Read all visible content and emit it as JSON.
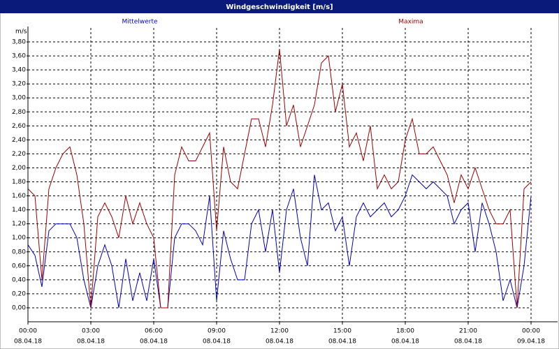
{
  "chart_data": {
    "type": "line",
    "title": "Windgeschwindigkeit [m/s]",
    "y_label": "m/s",
    "legend": "top",
    "grid": true,
    "x": [
      "08.04.18 00:00",
      "08.04.18 00:20",
      "08.04.18 00:40",
      "08.04.18 01:00",
      "08.04.18 01:20",
      "08.04.18 01:40",
      "08.04.18 02:00",
      "08.04.18 02:20",
      "08.04.18 02:40",
      "08.04.18 03:00",
      "08.04.18 03:20",
      "08.04.18 03:40",
      "08.04.18 04:00",
      "08.04.18 04:20",
      "08.04.18 04:40",
      "08.04.18 05:00",
      "08.04.18 05:20",
      "08.04.18 05:40",
      "08.04.18 06:00",
      "08.04.18 06:20",
      "08.04.18 06:40",
      "08.04.18 07:00",
      "08.04.18 07:20",
      "08.04.18 07:40",
      "08.04.18 08:00",
      "08.04.18 08:20",
      "08.04.18 08:40",
      "08.04.18 09:00",
      "08.04.18 09:20",
      "08.04.18 09:40",
      "08.04.18 10:00",
      "08.04.18 10:20",
      "08.04.18 10:40",
      "08.04.18 11:00",
      "08.04.18 11:20",
      "08.04.18 11:40",
      "08.04.18 12:00",
      "08.04.18 12:20",
      "08.04.18 12:40",
      "08.04.18 13:00",
      "08.04.18 13:20",
      "08.04.18 13:40",
      "08.04.18 14:00",
      "08.04.18 14:20",
      "08.04.18 14:40",
      "08.04.18 15:00",
      "08.04.18 15:20",
      "08.04.18 15:40",
      "08.04.18 16:00",
      "08.04.18 16:20",
      "08.04.18 16:40",
      "08.04.18 17:00",
      "08.04.18 17:20",
      "08.04.18 17:40",
      "08.04.18 18:00",
      "08.04.18 18:20",
      "08.04.18 18:40",
      "08.04.18 19:00",
      "08.04.18 19:20",
      "08.04.18 19:40",
      "08.04.18 20:00",
      "08.04.18 20:20",
      "08.04.18 20:40",
      "08.04.18 21:00",
      "08.04.18 21:20",
      "08.04.18 21:40",
      "08.04.18 22:00",
      "08.04.18 22:20",
      "08.04.18 22:40",
      "08.04.18 23:00",
      "08.04.18 23:20",
      "08.04.18 23:40",
      "09.04.18 00:00"
    ],
    "series": [
      {
        "name": "Mittelwerte",
        "color": "#0000c8",
        "values": [
          0.9,
          0.75,
          0.3,
          1.1,
          1.2,
          1.2,
          1.2,
          1.0,
          0.4,
          0.0,
          0.6,
          0.9,
          0.6,
          0.0,
          0.7,
          0.1,
          0.5,
          0.1,
          0.7,
          0.0,
          0.0,
          1.0,
          1.2,
          1.2,
          1.1,
          0.9,
          1.6,
          0.1,
          1.1,
          0.7,
          0.4,
          0.4,
          1.2,
          1.4,
          0.8,
          1.4,
          0.5,
          1.4,
          1.7,
          1.0,
          0.6,
          1.9,
          1.4,
          1.5,
          1.1,
          1.3,
          0.6,
          1.3,
          1.5,
          1.3,
          1.4,
          1.5,
          1.3,
          1.4,
          1.6,
          1.9,
          1.8,
          1.7,
          1.8,
          1.7,
          1.6,
          1.2,
          1.4,
          1.5,
          0.8,
          1.5,
          1.2,
          0.8,
          0.1,
          0.4,
          0.0,
          0.6,
          1.6
        ]
      },
      {
        "name": "Maxima",
        "color": "#a00000",
        "values": [
          1.7,
          1.6,
          0.4,
          1.7,
          2.0,
          2.2,
          2.3,
          1.9,
          1.2,
          0.0,
          1.3,
          1.5,
          1.3,
          1.0,
          1.6,
          1.2,
          1.5,
          1.2,
          1.0,
          0.0,
          0.0,
          1.9,
          2.3,
          2.1,
          2.1,
          2.3,
          2.5,
          1.1,
          2.3,
          1.8,
          1.7,
          2.2,
          2.7,
          2.7,
          2.3,
          2.9,
          3.7,
          2.6,
          2.9,
          2.3,
          2.6,
          2.9,
          3.5,
          3.6,
          2.8,
          3.2,
          2.3,
          2.5,
          2.1,
          2.6,
          1.7,
          1.9,
          1.7,
          1.8,
          2.4,
          2.7,
          2.2,
          2.2,
          2.3,
          2.1,
          1.9,
          1.5,
          1.9,
          1.7,
          2.0,
          1.7,
          1.4,
          1.2,
          1.2,
          1.4,
          0.0,
          1.7,
          1.8
        ]
      }
    ],
    "xlim": [
      "08.04.18 00:00",
      "09.04.18 00:00"
    ],
    "xticks": [
      {
        "value": "08.04.18 00:00",
        "label": [
          "00:00",
          "08.04.18"
        ]
      },
      {
        "value": "08.04.18 03:00",
        "label": [
          "03:00",
          "08.04.18"
        ]
      },
      {
        "value": "08.04.18 06:00",
        "label": [
          "06:00",
          "08.04.18"
        ]
      },
      {
        "value": "08.04.18 09:00",
        "label": [
          "09:00",
          "08.04.18"
        ]
      },
      {
        "value": "08.04.18 12:00",
        "label": [
          "12:00",
          "08.04.18"
        ]
      },
      {
        "value": "08.04.18 15:00",
        "label": [
          "15:00",
          "08.04.18"
        ]
      },
      {
        "value": "08.04.18 18:00",
        "label": [
          "18:00",
          "08.04.18"
        ]
      },
      {
        "value": "08.04.18 21:00",
        "label": [
          "21:00",
          "08.04.18"
        ]
      },
      {
        "value": "09.04.18 00:00",
        "label": [
          "00:00",
          "09.04.18"
        ]
      }
    ],
    "ylim": [
      -0.2,
      4.0
    ],
    "yticks": [
      {
        "value": 0,
        "label": "0,00"
      },
      {
        "value": 0.2,
        "label": "0,20"
      },
      {
        "value": 0.4,
        "label": "0,40"
      },
      {
        "value": 0.6,
        "label": "0,60"
      },
      {
        "value": 0.8,
        "label": "0,80"
      },
      {
        "value": 1.0,
        "label": "1,00"
      },
      {
        "value": 1.2,
        "label": "1,20"
      },
      {
        "value": 1.4,
        "label": "1,40"
      },
      {
        "value": 1.6,
        "label": "1,60"
      },
      {
        "value": 1.8,
        "label": "1,80"
      },
      {
        "value": 2.0,
        "label": "2,00"
      },
      {
        "value": 2.2,
        "label": "2,20"
      },
      {
        "value": 2.4,
        "label": "2,40"
      },
      {
        "value": 2.6,
        "label": "2,60"
      },
      {
        "value": 2.8,
        "label": "2,80"
      },
      {
        "value": 3.0,
        "label": "3,00"
      },
      {
        "value": 3.2,
        "label": "3,20"
      },
      {
        "value": 3.4,
        "label": "3,40"
      },
      {
        "value": 3.6,
        "label": "3,60"
      },
      {
        "value": 3.8,
        "label": "3,80"
      }
    ]
  }
}
